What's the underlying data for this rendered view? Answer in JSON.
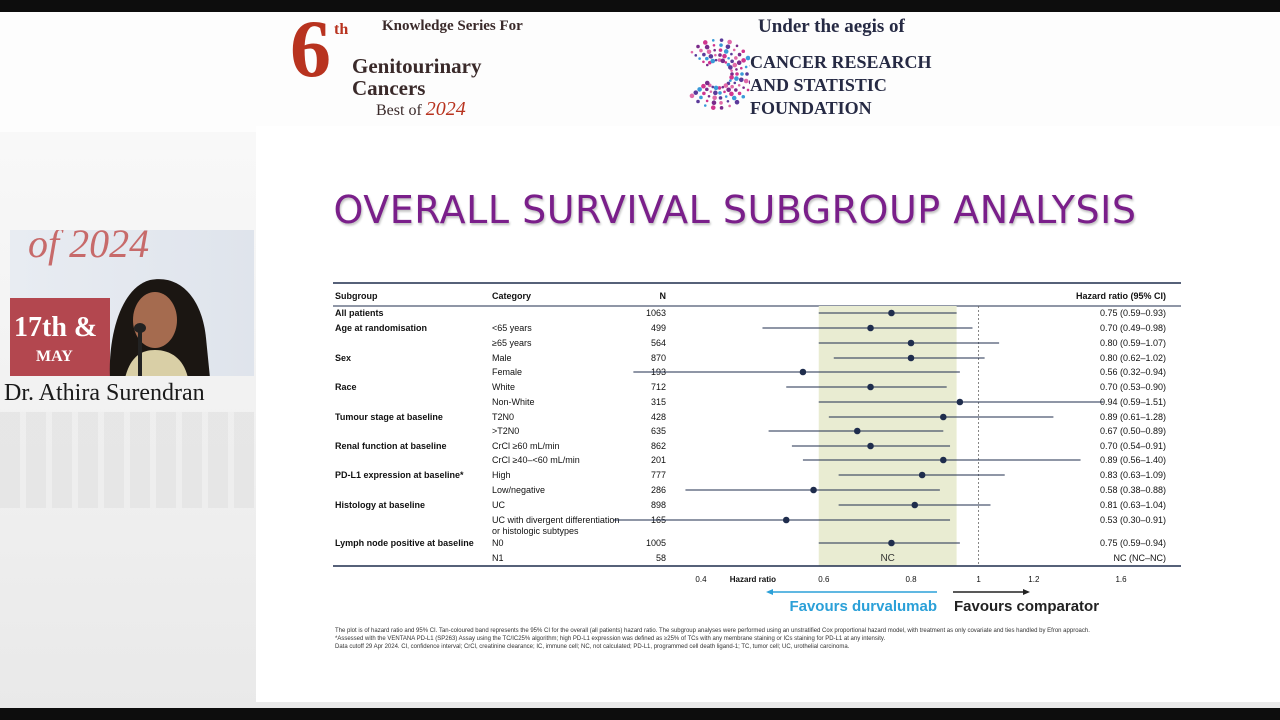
{
  "header": {
    "logo_6": "6",
    "logo_th": "th",
    "logo_series": "Knowledge Series For",
    "logo_line1": "Genitourinary",
    "logo_line2": "Cancers",
    "logo_best_of": "Best of",
    "logo_year": "2024",
    "aegis_title": "Under the aegis of",
    "aegis_line1": "CANCER RESEARCH",
    "aegis_line2": "AND STATISTIC",
    "aegis_line3": "FOUNDATION"
  },
  "video": {
    "banner_top": "of 2024",
    "banner_date": "17th &",
    "banner_month": "MAY",
    "speaker_name": "Dr. Athira Surendran"
  },
  "slide": {
    "title": "OVERALL SURVIVAL SUBGROUP ANALYSIS",
    "footnotes": [
      "The plot is of hazard ratio and 95% CI. Tan-coloured band represents the 95% CI for the overall (all patients) hazard ratio. The subgroup analyses were performed using an unstratified Cox proportional hazard model, with treatment as only covariate and ties handled by Efron approach.",
      "*Assessed with the VENTANA PD-L1 (SP263) Assay using the TC/IC25% algorithm; high PD-L1 expression was defined as ≥25% of TCs with any membrane staining or ICs staining for PD-L1 at any intensity.",
      "Data cutoff 29 Apr 2024. CI, confidence interval; CrCl, creatinine clearance; IC, immune cell; NC, not calculated; PD-L1, programmed cell death ligand-1; TC, tumor cell; UC, urothelial carcinoma."
    ]
  },
  "chart_data": {
    "type": "forest",
    "columns": {
      "subgroup": "Subgroup",
      "category": "Category",
      "n": "N",
      "hr": "Hazard ratio (95% CI)"
    },
    "xlabel": "Hazard ratio",
    "xticks": [
      0.4,
      0.6,
      0.8,
      1,
      1.2,
      1.6
    ],
    "xscale": "log",
    "xlim": [
      0.3,
      1.75
    ],
    "reference_line": 1,
    "overall_band": [
      0.59,
      0.93
    ],
    "favours_left": "Favours durvalumab",
    "favours_right": "Favours comparator",
    "nc_label": "NC",
    "colors": {
      "band": "#e9ecd2",
      "point": "#1f2d4d",
      "favours_left": "#2ba0d8",
      "favours_right": "#222222",
      "title": "#7a1f8a"
    },
    "rows": [
      {
        "subgroup": "All patients",
        "category": "",
        "n": "1063",
        "hr": 0.75,
        "lo": 0.59,
        "hi": 0.93,
        "label": "0.75 (0.59–0.93)"
      },
      {
        "subgroup": "Age at randomisation",
        "category": "<65 years",
        "n": "499",
        "hr": 0.7,
        "lo": 0.49,
        "hi": 0.98,
        "label": "0.70 (0.49–0.98)"
      },
      {
        "subgroup": "",
        "category": "≥65 years",
        "n": "564",
        "hr": 0.8,
        "lo": 0.59,
        "hi": 1.07,
        "label": "0.80 (0.59–1.07)"
      },
      {
        "subgroup": "Sex",
        "category": "Male",
        "n": "870",
        "hr": 0.8,
        "lo": 0.62,
        "hi": 1.02,
        "label": "0.80 (0.62–1.02)"
      },
      {
        "subgroup": "",
        "category": "Female",
        "n": "193",
        "hr": 0.56,
        "lo": 0.32,
        "hi": 0.94,
        "label": "0.56 (0.32–0.94)"
      },
      {
        "subgroup": "Race",
        "category": "White",
        "n": "712",
        "hr": 0.7,
        "lo": 0.53,
        "hi": 0.9,
        "label": "0.70 (0.53–0.90)"
      },
      {
        "subgroup": "",
        "category": "Non-White",
        "n": "315",
        "hr": 0.94,
        "lo": 0.59,
        "hi": 1.51,
        "label": "0.94 (0.59–1.51)"
      },
      {
        "subgroup": "Tumour stage at baseline",
        "category": "T2N0",
        "n": "428",
        "hr": 0.89,
        "lo": 0.61,
        "hi": 1.28,
        "label": "0.89 (0.61–1.28)"
      },
      {
        "subgroup": "",
        "category": ">T2N0",
        "n": "635",
        "hr": 0.67,
        "lo": 0.5,
        "hi": 0.89,
        "label": "0.67 (0.50–0.89)"
      },
      {
        "subgroup": "Renal function at baseline",
        "category": "CrCl ≥60 mL/min",
        "n": "862",
        "hr": 0.7,
        "lo": 0.54,
        "hi": 0.91,
        "label": "0.70 (0.54–0.91)"
      },
      {
        "subgroup": "",
        "category": "CrCl ≥40–<60 mL/min",
        "n": "201",
        "hr": 0.89,
        "lo": 0.56,
        "hi": 1.4,
        "label": "0.89 (0.56–1.40)"
      },
      {
        "subgroup": "PD-L1 expression at baseline*",
        "category": "High",
        "n": "777",
        "hr": 0.83,
        "lo": 0.63,
        "hi": 1.09,
        "label": "0.83 (0.63–1.09)"
      },
      {
        "subgroup": "",
        "category": "Low/negative",
        "n": "286",
        "hr": 0.58,
        "lo": 0.38,
        "hi": 0.88,
        "label": "0.58 (0.38–0.88)"
      },
      {
        "subgroup": "Histology at baseline",
        "category": "UC",
        "n": "898",
        "hr": 0.81,
        "lo": 0.63,
        "hi": 1.04,
        "label": "0.81 (0.63–1.04)"
      },
      {
        "subgroup": "",
        "category": "UC with divergent differentiation",
        "category2": "or histologic subtypes",
        "n": "165",
        "hr": 0.53,
        "lo": 0.3,
        "hi": 0.91,
        "label": "0.53 (0.30–0.91)"
      },
      {
        "subgroup": "Lymph node positive at baseline",
        "category": "N0",
        "n": "1005",
        "hr": 0.75,
        "lo": 0.59,
        "hi": 0.94,
        "label": "0.75 (0.59–0.94)"
      },
      {
        "subgroup": "",
        "category": "N1",
        "n": "58",
        "hr": null,
        "lo": null,
        "hi": null,
        "label": "NC (NC–NC)"
      }
    ]
  }
}
